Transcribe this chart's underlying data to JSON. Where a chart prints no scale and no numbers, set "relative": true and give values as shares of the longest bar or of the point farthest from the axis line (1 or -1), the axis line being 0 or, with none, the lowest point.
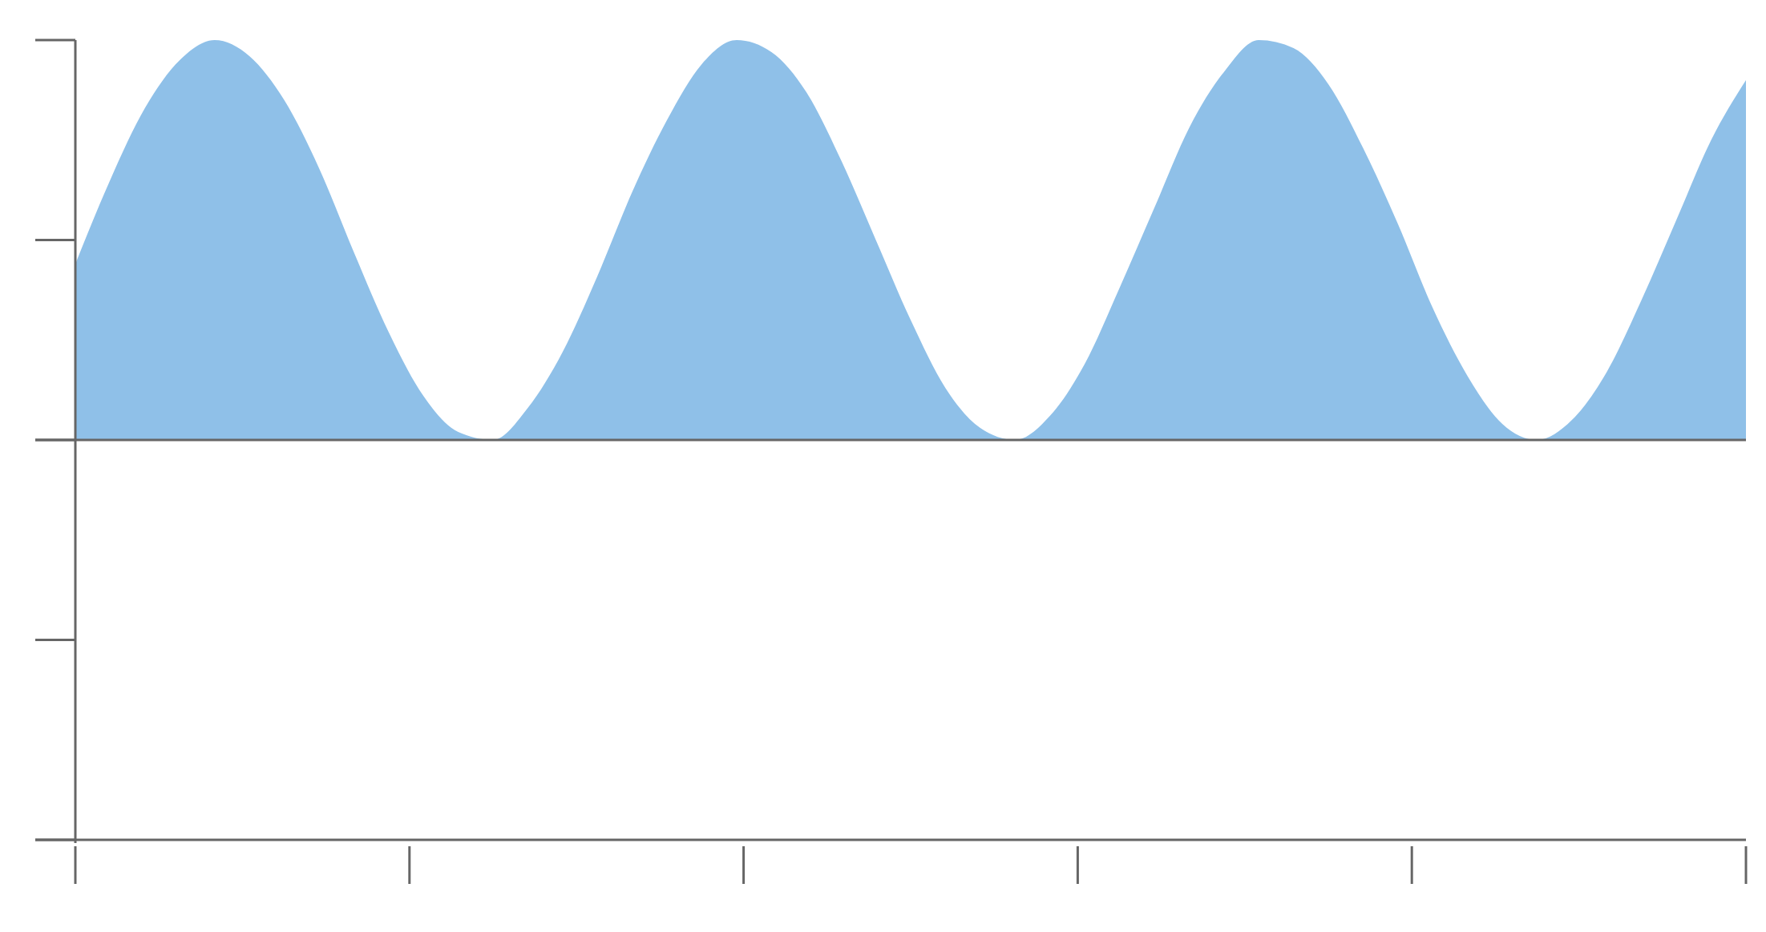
{
  "chart_data": {
    "type": "area",
    "relative": true,
    "color": "#8fc0e8",
    "categories": [
      null,
      null,
      null,
      null,
      null,
      null,
      null,
      null,
      null,
      null,
      null,
      null,
      null,
      null,
      null,
      null,
      null,
      null,
      null,
      null,
      null,
      null,
      null,
      null,
      null,
      null,
      null,
      null,
      null,
      null,
      null,
      null,
      null,
      null,
      null,
      null,
      null,
      null,
      null,
      null,
      null,
      null,
      null,
      null,
      null,
      null,
      null,
      null,
      null
    ],
    "values": [
      0.44,
      0.65,
      0.83,
      0.95,
      1,
      0.96,
      0.85,
      0.68,
      0.47,
      0.27,
      0.11,
      0.02,
      0,
      0.08,
      0.22,
      0.41,
      0.62,
      0.8,
      0.94,
      1,
      0.97,
      0.87,
      0.7,
      0.5,
      0.3,
      0.13,
      0.03,
      0,
      0.06,
      0.19,
      0.38,
      0.58,
      0.78,
      0.92,
      1,
      0.98,
      0.89,
      0.73,
      0.54,
      0.33,
      0.16,
      0.04,
      0,
      0.05,
      0.17,
      0.35,
      0.55,
      0.75,
      0.9
    ]
  }
}
